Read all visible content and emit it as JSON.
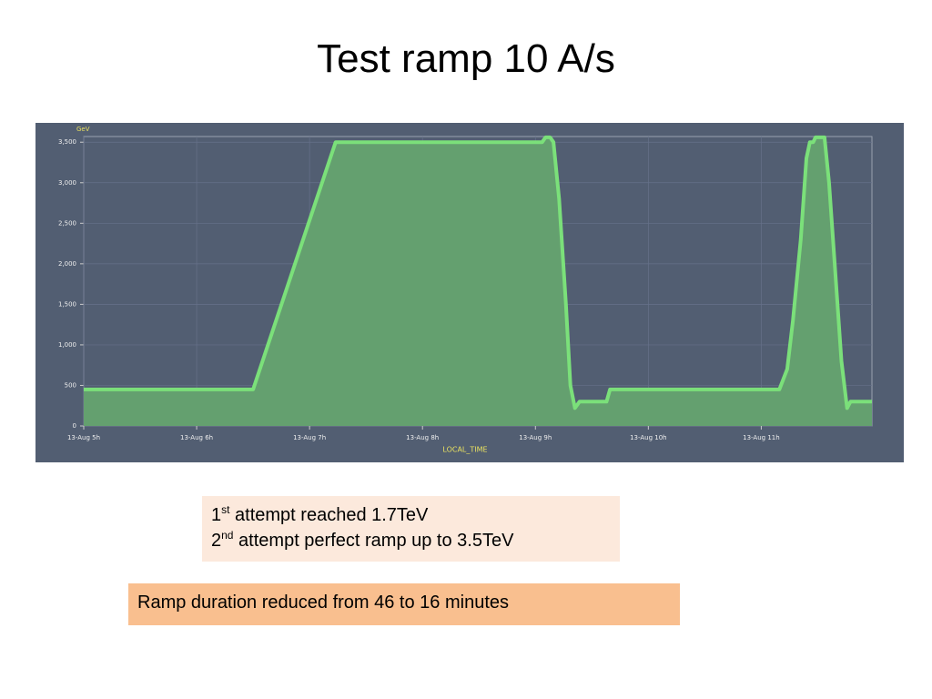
{
  "title": "Test ramp 10 A/s",
  "chart_data": {
    "type": "area",
    "y_label": "GeV",
    "x_label": "LOCAL_TIME",
    "x": [
      5.0,
      6.5,
      7.23,
      9.06,
      9.09,
      9.13,
      9.16,
      9.21,
      9.27,
      9.31,
      9.35,
      9.39,
      9.63,
      9.66,
      11.16,
      11.23,
      11.28,
      11.35,
      11.4,
      11.43,
      11.46,
      11.48,
      11.56,
      11.6,
      11.65,
      11.71,
      11.76,
      11.79,
      11.98
    ],
    "values": [
      450,
      450,
      3500,
      3500,
      3560,
      3560,
      3500,
      2800,
      1500,
      500,
      220,
      300,
      300,
      450,
      450,
      700,
      1300,
      2300,
      3300,
      3500,
      3500,
      3560,
      3560,
      3000,
      2000,
      800,
      220,
      300,
      300
    ],
    "color": "#7be07a",
    "fill": "#64a06f",
    "grid": true,
    "xlim": [
      5,
      11.98
    ],
    "xticks": [
      {
        "value": 5,
        "label": "13-Aug 5h"
      },
      {
        "value": 6,
        "label": "13-Aug 6h"
      },
      {
        "value": 7,
        "label": "13-Aug 7h"
      },
      {
        "value": 8,
        "label": "13-Aug 8h"
      },
      {
        "value": 9,
        "label": "13-Aug 9h"
      },
      {
        "value": 10,
        "label": "13-Aug 10h"
      },
      {
        "value": 11,
        "label": "13-Aug 11h"
      }
    ],
    "ylim": [
      0,
      3570
    ],
    "yticks": [
      0,
      500,
      {
        "value": 1000,
        "label": "1,000"
      },
      {
        "value": 1500,
        "label": "1,500"
      },
      {
        "value": 2000,
        "label": "2,000"
      },
      {
        "value": 2500,
        "label": "2,500"
      },
      {
        "value": 3000,
        "label": "3,000"
      },
      {
        "value": 3500,
        "label": "3,500"
      }
    ]
  },
  "attempts_box": [
    {
      "number": "1",
      "suffix": "st",
      "text": "attempt reached 1.7TeV"
    },
    {
      "number": "2",
      "suffix": "nd",
      "text": "attempt perfect ramp up to 3.5TeV"
    }
  ],
  "duration_box": "Ramp duration reduced from 46 to 16 minutes"
}
